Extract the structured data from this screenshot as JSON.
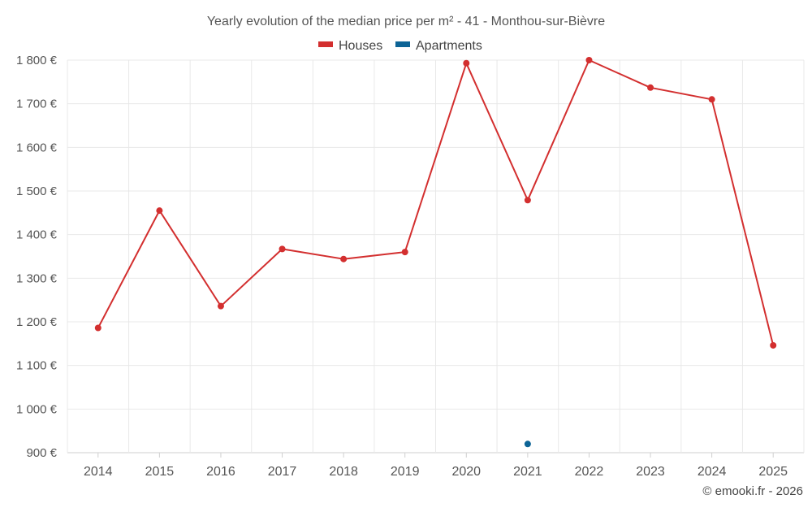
{
  "chart_data": {
    "type": "line",
    "title": "Yearly evolution of the median price per m² - 41 - Monthou-sur-Bièvre",
    "categories": [
      "2014",
      "2015",
      "2016",
      "2017",
      "2018",
      "2019",
      "2020",
      "2021",
      "2022",
      "2023",
      "2024",
      "2025"
    ],
    "series": [
      {
        "name": "Houses",
        "color": "#d32f2f",
        "values": [
          1186,
          1455,
          1236,
          1367,
          1344,
          1360,
          1793,
          1479,
          1800,
          1737,
          1710,
          1146
        ]
      },
      {
        "name": "Apartments",
        "color": "#0d6496",
        "values": [
          null,
          null,
          null,
          null,
          null,
          null,
          null,
          920,
          null,
          null,
          null,
          null
        ]
      }
    ],
    "ylim": [
      900,
      1800
    ],
    "yticks": [
      900,
      1000,
      1100,
      1200,
      1300,
      1400,
      1500,
      1600,
      1700,
      1800
    ],
    "ytick_labels": [
      "900 €",
      "1 000 €",
      "1 100 €",
      "1 200 €",
      "1 300 €",
      "1 400 €",
      "1 500 €",
      "1 600 €",
      "1 700 €",
      "1 800 €"
    ],
    "xlabel": "",
    "ylabel": "",
    "grid": true,
    "legend_position": "top-center"
  },
  "footer": {
    "credit": "© emooki.fr - 2026"
  }
}
